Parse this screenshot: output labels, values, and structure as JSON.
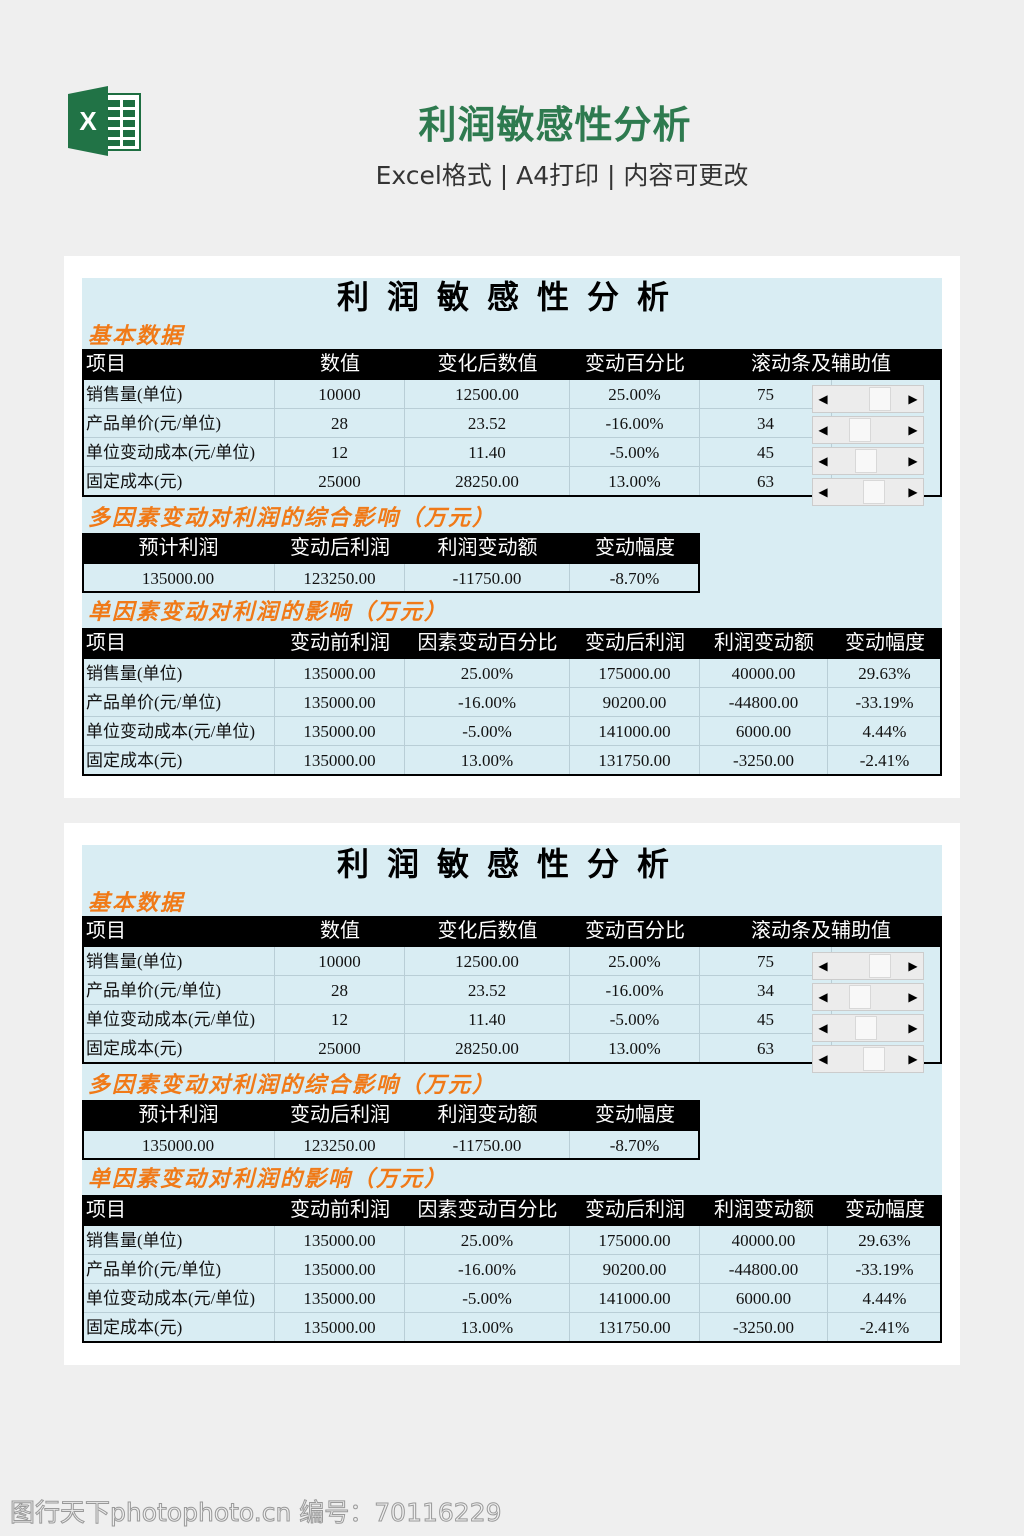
{
  "header": {
    "title": "利润敏感性分析",
    "subtitle": "Excel格式 | A4打印 | 内容可更改",
    "logo_icon": "excel-icon",
    "accent": "#2e7a4f"
  },
  "sheet": {
    "title": "利润敏感性分析",
    "basic_label": "基本数据",
    "basic_headers": [
      "项目",
      "数值",
      "变化后数值",
      "变动百分比",
      "滚动条及辅助值"
    ],
    "basic_rows": [
      [
        "销售量(单位)",
        "10000",
        "12500.00",
        "25.00%",
        "75"
      ],
      [
        "产品单价(元/单位)",
        "28",
        "23.52",
        "-16.00%",
        "34"
      ],
      [
        "单位变动成本(元/单位)",
        "12",
        "11.40",
        "-5.00%",
        "45"
      ],
      [
        "固定成本(元)",
        "25000",
        "28250.00",
        "13.00%",
        "63"
      ]
    ],
    "scrollbar_values": [
      75,
      34,
      45,
      63
    ],
    "multi_label": "多因素变动对利润的综合影响（万元）",
    "multi_headers": [
      "预计利润",
      "变动后利润",
      "利润变动额",
      "变动幅度"
    ],
    "multi_row": [
      "135000.00",
      "123250.00",
      "-11750.00",
      "-8.70%"
    ],
    "single_label": "单因素变动对利润的影响（万元）",
    "single_headers": [
      "项目",
      "变动前利润",
      "因素变动百分比",
      "变动后利润",
      "利润变动额",
      "变动幅度"
    ],
    "single_rows": [
      [
        "销售量(单位)",
        "135000.00",
        "25.00%",
        "175000.00",
        "40000.00",
        "29.63%"
      ],
      [
        "产品单价(元/单位)",
        "135000.00",
        "-16.00%",
        "90200.00",
        "-44800.00",
        "-33.19%"
      ],
      [
        "单位变动成本(元/单位)",
        "135000.00",
        "-5.00%",
        "141000.00",
        "6000.00",
        "4.44%"
      ],
      [
        "固定成本(元)",
        "135000.00",
        "13.00%",
        "131750.00",
        "-3250.00",
        "-2.41%"
      ]
    ],
    "colors": {
      "background": "#d9edf3",
      "section": "#f07a18",
      "header_bg": "#000000"
    }
  },
  "watermark": "图行天下photophoto.cn 编号：70116229"
}
